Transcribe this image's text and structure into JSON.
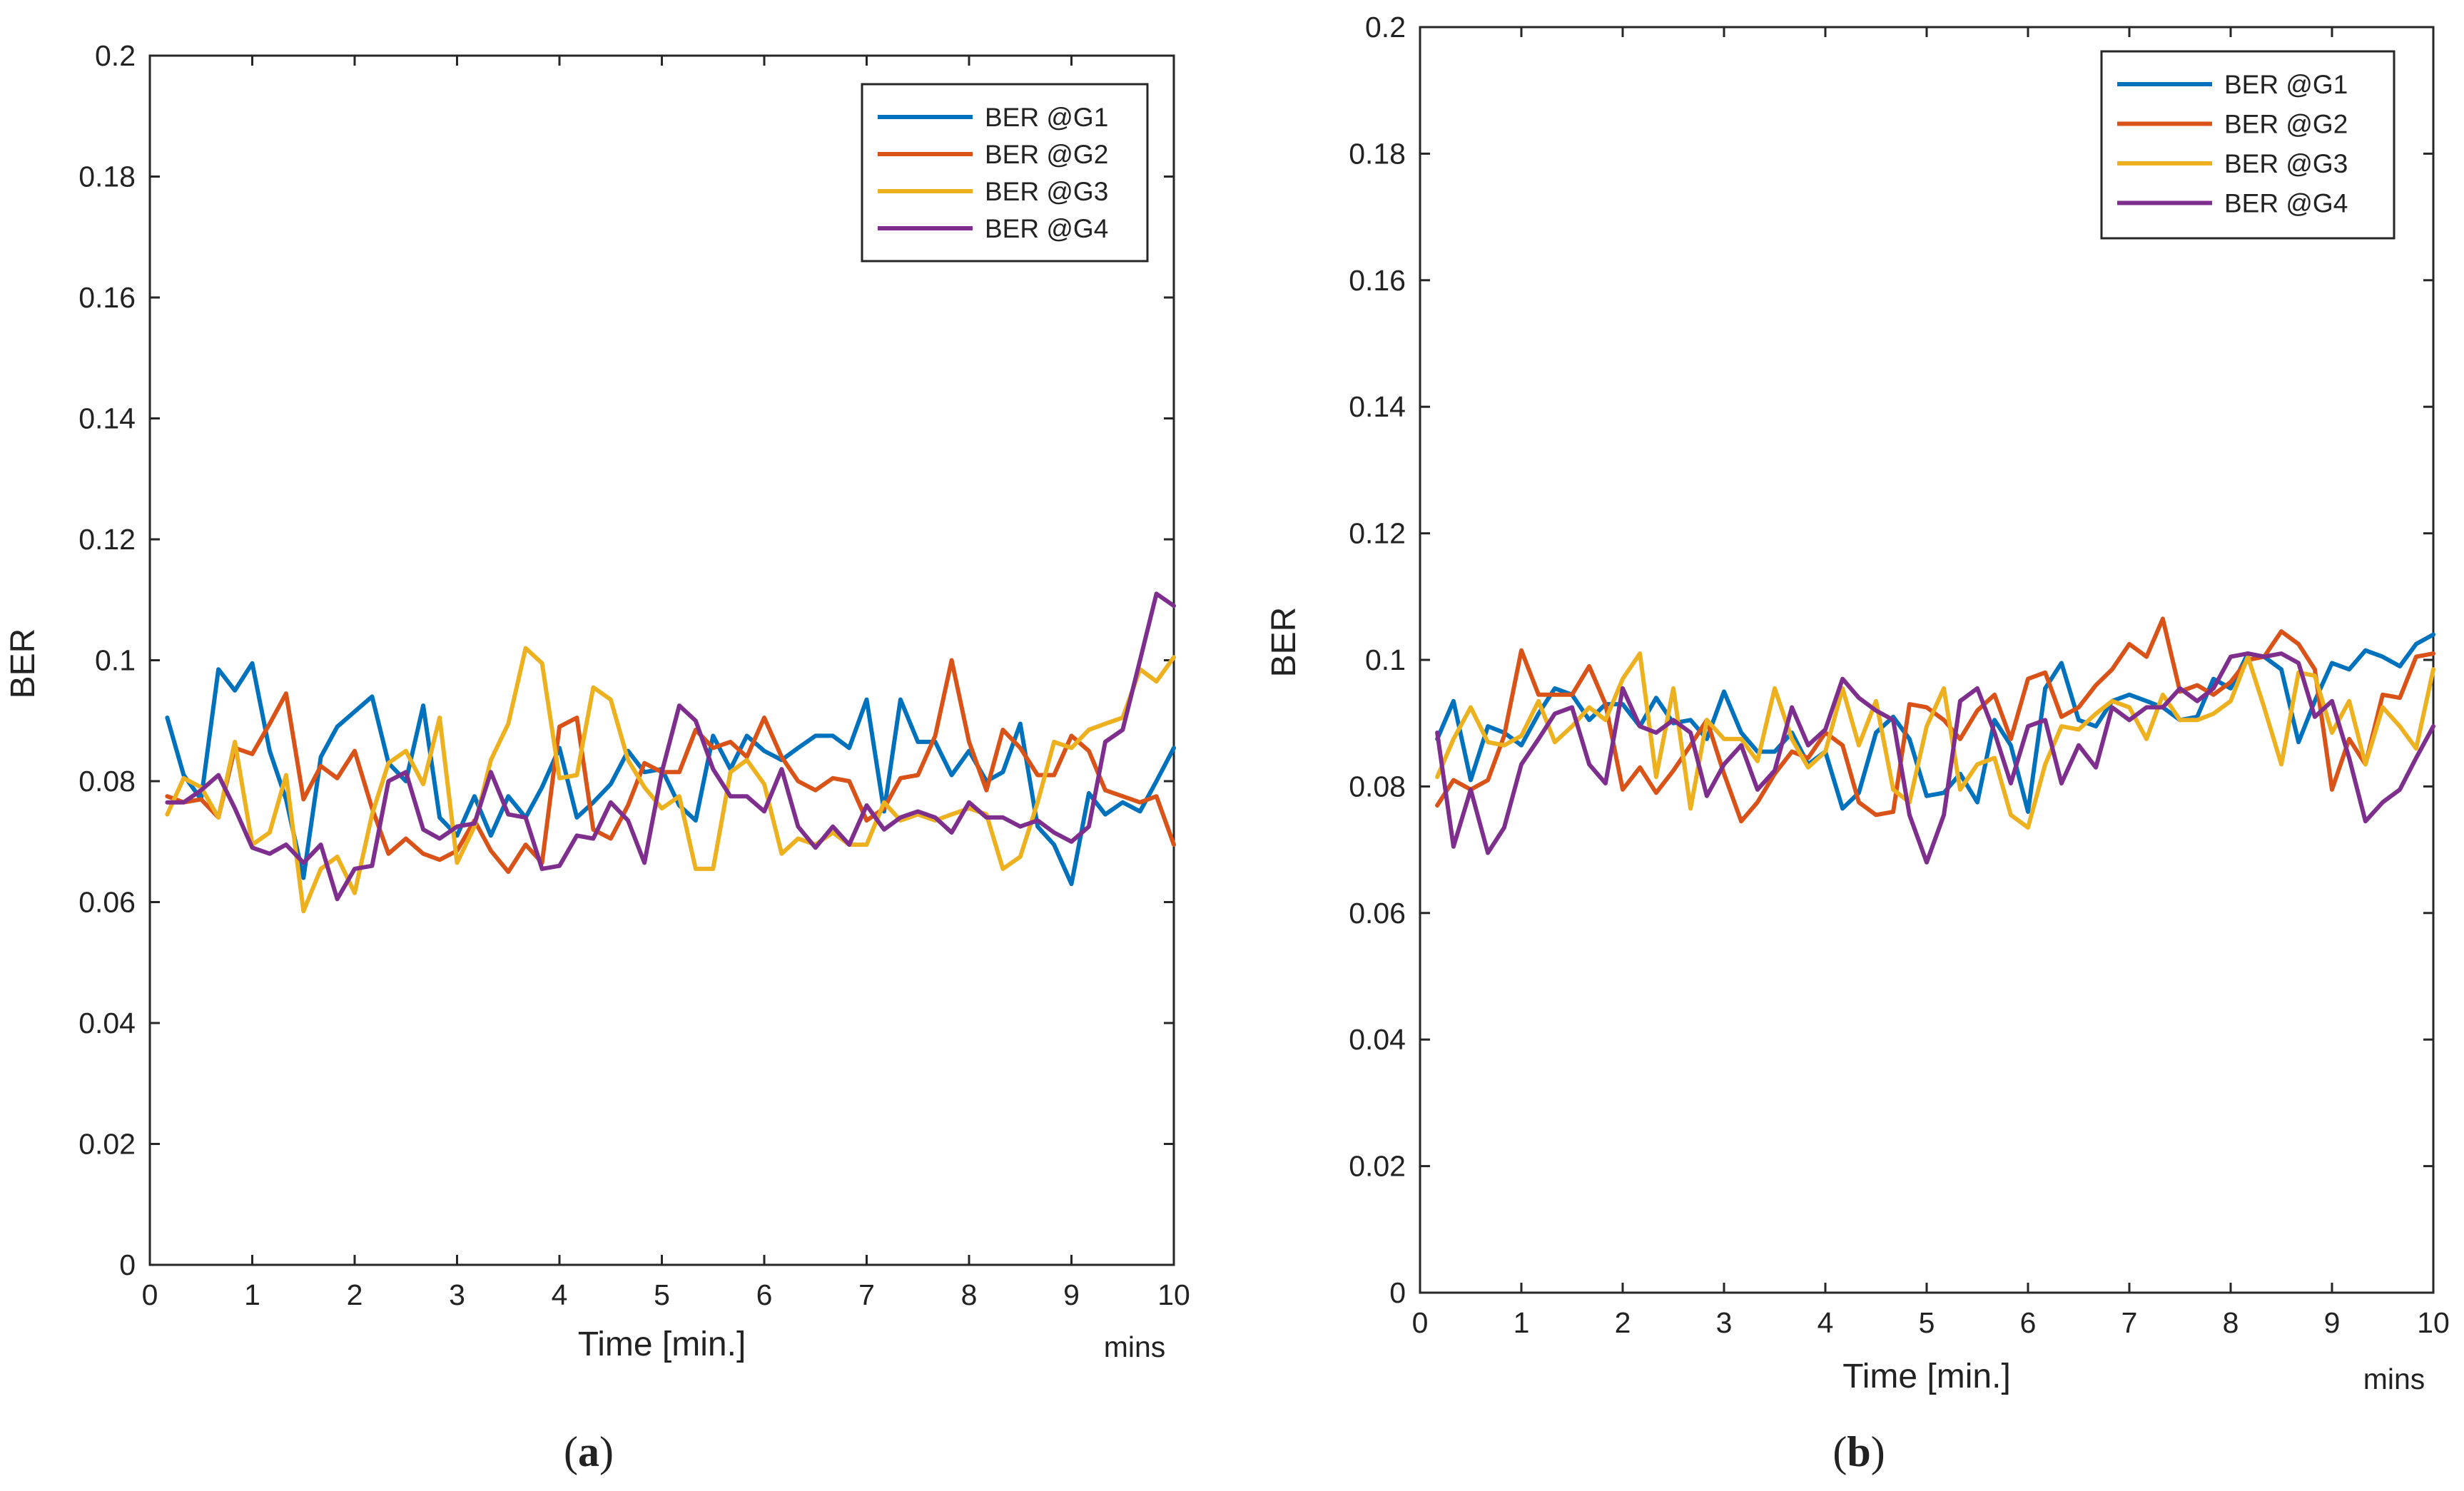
{
  "legend_labels": [
    "BER @G1",
    "BER @G2",
    "BER @G3",
    "BER @G4"
  ],
  "series_colors": [
    "#0072BD",
    "#D95319",
    "#EDB120",
    "#7E2F8E"
  ],
  "chart_data": [
    {
      "type": "line",
      "panel_label": {
        "open": "(",
        "letter": "a",
        "close": ")"
      },
      "title": "",
      "xlabel": "Time [min.]",
      "xunit_label": "mins",
      "ylabel": "BER",
      "xlim": [
        0,
        10
      ],
      "ylim": [
        0,
        0.2
      ],
      "xticks": [
        "0",
        "1",
        "2",
        "3",
        "4",
        "5",
        "6",
        "7",
        "8",
        "9",
        "10"
      ],
      "yticks": [
        "0",
        "0.02",
        "0.04",
        "0.06",
        "0.08",
        "0.1",
        "0.12",
        "0.14",
        "0.16",
        "0.18",
        "0.2"
      ],
      "grid": false,
      "legend_position": "top-right",
      "x": [
        0.17,
        0.33,
        0.5,
        0.67,
        0.83,
        1.0,
        1.17,
        1.33,
        1.5,
        1.67,
        1.83,
        2.0,
        2.17,
        2.33,
        2.5,
        2.67,
        2.83,
        3.0,
        3.17,
        3.33,
        3.5,
        3.67,
        3.83,
        4.0,
        4.17,
        4.33,
        4.5,
        4.67,
        4.83,
        5.0,
        5.17,
        5.33,
        5.5,
        5.67,
        5.83,
        6.0,
        6.17,
        6.33,
        6.5,
        6.67,
        6.83,
        7.0,
        7.17,
        7.33,
        7.5,
        7.67,
        7.83,
        8.0,
        8.17,
        8.33,
        8.5,
        8.67,
        8.83,
        9.0,
        9.17,
        9.33,
        9.5,
        9.67,
        9.83,
        10.0
      ],
      "series": [
        {
          "name": "BER @G1",
          "values": [
            0.0905,
            0.081,
            0.077,
            0.0985,
            0.095,
            0.0995,
            0.085,
            0.077,
            0.064,
            0.084,
            0.089,
            0.0915,
            0.094,
            0.083,
            0.08,
            0.0925,
            0.074,
            0.071,
            0.0775,
            0.071,
            0.0775,
            0.074,
            0.079,
            0.0855,
            0.074,
            0.0765,
            0.0795,
            0.085,
            0.0815,
            0.082,
            0.076,
            0.0735,
            0.0875,
            0.082,
            0.0875,
            0.085,
            0.0835,
            0.0855,
            0.0875,
            0.0875,
            0.0855,
            0.0935,
            0.075,
            0.0935,
            0.0865,
            0.0865,
            0.081,
            0.085,
            0.08,
            0.0815,
            0.0895,
            0.0725,
            0.0695,
            0.063,
            0.078,
            0.0745,
            0.0765,
            0.075,
            0.08,
            0.0855
          ]
        },
        {
          "name": "BER @G2",
          "values": [
            0.0775,
            0.0765,
            0.077,
            0.074,
            0.0855,
            0.0845,
            0.0895,
            0.0945,
            0.077,
            0.0825,
            0.0805,
            0.085,
            0.0755,
            0.068,
            0.0705,
            0.068,
            0.067,
            0.0685,
            0.0735,
            0.0685,
            0.065,
            0.0695,
            0.0665,
            0.089,
            0.0905,
            0.072,
            0.0705,
            0.076,
            0.083,
            0.0815,
            0.0815,
            0.0885,
            0.0855,
            0.0865,
            0.084,
            0.0905,
            0.084,
            0.08,
            0.0785,
            0.0805,
            0.08,
            0.0735,
            0.0755,
            0.0805,
            0.081,
            0.0875,
            0.1,
            0.0865,
            0.0785,
            0.0885,
            0.0855,
            0.081,
            0.081,
            0.0875,
            0.085,
            0.0785,
            0.0775,
            0.0765,
            0.0775,
            0.0695
          ]
        },
        {
          "name": "BER @G3",
          "values": [
            0.0745,
            0.0805,
            0.079,
            0.074,
            0.0865,
            0.0695,
            0.0715,
            0.081,
            0.0585,
            0.0655,
            0.0675,
            0.0615,
            0.0745,
            0.083,
            0.085,
            0.0795,
            0.0905,
            0.0665,
            0.0725,
            0.0835,
            0.0895,
            0.102,
            0.0995,
            0.0805,
            0.081,
            0.0955,
            0.0935,
            0.0835,
            0.079,
            0.0755,
            0.0775,
            0.0655,
            0.0655,
            0.0815,
            0.0835,
            0.0795,
            0.068,
            0.0705,
            0.0695,
            0.0715,
            0.0695,
            0.0695,
            0.0765,
            0.0735,
            0.0745,
            0.0735,
            0.0745,
            0.0755,
            0.0745,
            0.0655,
            0.0675,
            0.0765,
            0.0865,
            0.0855,
            0.0885,
            0.0895,
            0.0905,
            0.0985,
            0.0965,
            0.1005
          ]
        },
        {
          "name": "BER @G4",
          "values": [
            0.0765,
            0.0765,
            0.0785,
            0.081,
            0.0755,
            0.069,
            0.068,
            0.0695,
            0.0665,
            0.0695,
            0.0605,
            0.0655,
            0.066,
            0.08,
            0.0815,
            0.072,
            0.0705,
            0.0725,
            0.073,
            0.0815,
            0.0745,
            0.074,
            0.0655,
            0.066,
            0.071,
            0.0705,
            0.0765,
            0.0735,
            0.0665,
            0.0815,
            0.0925,
            0.09,
            0.082,
            0.0775,
            0.0775,
            0.075,
            0.082,
            0.0725,
            0.069,
            0.0725,
            0.0695,
            0.076,
            0.072,
            0.074,
            0.075,
            0.074,
            0.0715,
            0.0765,
            0.074,
            0.074,
            0.0725,
            0.0735,
            0.0715,
            0.07,
            0.0725,
            0.0865,
            0.0885,
            0.1,
            0.111,
            0.109
          ]
        }
      ]
    },
    {
      "type": "line",
      "panel_label": {
        "open": "(",
        "letter": "b",
        "close": ")"
      },
      "title": "",
      "xlabel": "Time [min.]",
      "xunit_label": "mins",
      "ylabel": "BER",
      "xlim": [
        0,
        10
      ],
      "ylim": [
        0,
        0.2
      ],
      "xticks": [
        "0",
        "1",
        "2",
        "3",
        "4",
        "5",
        "6",
        "7",
        "8",
        "9",
        "10"
      ],
      "yticks": [
        "0",
        "0.02",
        "0.04",
        "0.06",
        "0.08",
        "0.1",
        "0.12",
        "0.14",
        "0.16",
        "0.18",
        "0.2"
      ],
      "grid": false,
      "legend_position": "top-right",
      "x": [
        0.17,
        0.33,
        0.5,
        0.67,
        0.83,
        1.0,
        1.17,
        1.33,
        1.5,
        1.67,
        1.83,
        2.0,
        2.17,
        2.33,
        2.5,
        2.67,
        2.83,
        3.0,
        3.17,
        3.33,
        3.5,
        3.67,
        3.83,
        4.0,
        4.17,
        4.33,
        4.5,
        4.67,
        4.83,
        5.0,
        5.17,
        5.33,
        5.5,
        5.67,
        5.83,
        6.0,
        6.17,
        6.33,
        6.5,
        6.67,
        6.83,
        7.0,
        7.17,
        7.33,
        7.5,
        7.67,
        7.83,
        8.0,
        8.17,
        8.33,
        8.5,
        8.67,
        8.83,
        9.0,
        9.17,
        9.33,
        9.5,
        9.67,
        9.83,
        10.0
      ],
      "series": [
        {
          "name": "BER @G1",
          "values": [
            0.0875,
            0.0935,
            0.081,
            0.0895,
            0.0885,
            0.0865,
            0.0915,
            0.0955,
            0.0945,
            0.0905,
            0.093,
            0.093,
            0.0895,
            0.094,
            0.09,
            0.0905,
            0.0875,
            0.095,
            0.0885,
            0.0855,
            0.0855,
            0.0885,
            0.0835,
            0.0855,
            0.0765,
            0.079,
            0.0885,
            0.091,
            0.0875,
            0.0785,
            0.079,
            0.082,
            0.0775,
            0.0905,
            0.0865,
            0.076,
            0.0955,
            0.0995,
            0.0905,
            0.0895,
            0.0935,
            0.0945,
            0.0935,
            0.0925,
            0.0905,
            0.091,
            0.097,
            0.0955,
            0.101,
            0.1005,
            0.0985,
            0.087,
            0.0935,
            0.0995,
            0.0985,
            0.1015,
            0.1005,
            0.099,
            0.1025,
            0.104
          ]
        },
        {
          "name": "BER @G2",
          "values": [
            0.077,
            0.081,
            0.0795,
            0.081,
            0.088,
            0.1015,
            0.0945,
            0.0945,
            0.0945,
            0.099,
            0.093,
            0.0795,
            0.083,
            0.079,
            0.0825,
            0.0865,
            0.0905,
            0.082,
            0.0745,
            0.0775,
            0.082,
            0.0855,
            0.0845,
            0.0885,
            0.0865,
            0.0775,
            0.0755,
            0.076,
            0.093,
            0.0925,
            0.0905,
            0.0875,
            0.092,
            0.0945,
            0.0875,
            0.097,
            0.098,
            0.091,
            0.0925,
            0.096,
            0.0985,
            0.1025,
            0.1005,
            0.1065,
            0.095,
            0.096,
            0.0945,
            0.0965,
            0.1,
            0.1005,
            0.1045,
            0.1025,
            0.0985,
            0.0795,
            0.0875,
            0.0835,
            0.0945,
            0.094,
            0.1005,
            0.101
          ]
        },
        {
          "name": "BER @G3",
          "values": [
            0.0815,
            0.0875,
            0.0925,
            0.087,
            0.0865,
            0.088,
            0.0935,
            0.087,
            0.0895,
            0.0925,
            0.0905,
            0.097,
            0.101,
            0.0815,
            0.0955,
            0.0765,
            0.0905,
            0.0875,
            0.0875,
            0.084,
            0.0955,
            0.0875,
            0.083,
            0.0855,
            0.0955,
            0.0865,
            0.0935,
            0.0795,
            0.0775,
            0.0895,
            0.0955,
            0.0795,
            0.0835,
            0.0845,
            0.0755,
            0.0735,
            0.0835,
            0.0895,
            0.089,
            0.0915,
            0.0935,
            0.0925,
            0.0875,
            0.0945,
            0.0905,
            0.0905,
            0.0915,
            0.0935,
            0.1005,
            0.0925,
            0.0835,
            0.098,
            0.0975,
            0.0885,
            0.0935,
            0.0835,
            0.0925,
            0.0895,
            0.086,
            0.0985
          ]
        },
        {
          "name": "BER @G4",
          "values": [
            0.0885,
            0.0705,
            0.0795,
            0.0695,
            0.0735,
            0.0835,
            0.0875,
            0.0915,
            0.0925,
            0.0835,
            0.0805,
            0.0955,
            0.0895,
            0.0885,
            0.0905,
            0.0885,
            0.0785,
            0.0835,
            0.0865,
            0.0795,
            0.0825,
            0.0925,
            0.0865,
            0.089,
            0.097,
            0.094,
            0.092,
            0.0905,
            0.0755,
            0.068,
            0.0755,
            0.0935,
            0.0955,
            0.0885,
            0.0805,
            0.0895,
            0.0905,
            0.0805,
            0.0865,
            0.083,
            0.0925,
            0.0905,
            0.0925,
            0.0925,
            0.0955,
            0.0935,
            0.0955,
            0.1005,
            0.101,
            0.1005,
            0.101,
            0.0995,
            0.091,
            0.0935,
            0.0845,
            0.0745,
            0.0775,
            0.0795,
            0.0845,
            0.0895
          ]
        }
      ]
    }
  ]
}
